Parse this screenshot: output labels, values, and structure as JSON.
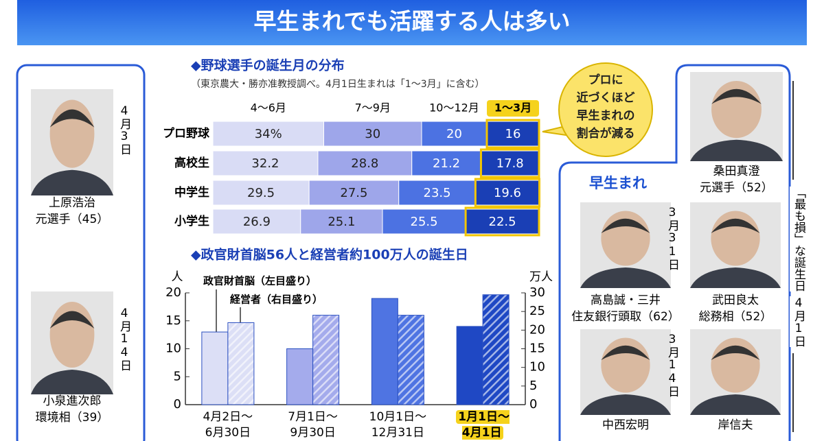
{
  "title": "早生まれでも活躍する人は多い",
  "chart_data": [
    {
      "type": "stacked_bar_h",
      "title": "◆野球選手の誕生月の分布",
      "subtitle": "（東京農大・勝亦准教授調べ。4月1日生まれは「1～3月」に含む）",
      "categories": [
        "プロ野球",
        "高校生",
        "中学生",
        "小学生"
      ],
      "series": [
        {
          "name": "4～6月",
          "color": "#d9dcf5",
          "values": [
            34,
            32.2,
            29.5,
            26.9
          ],
          "value_labels": [
            "34%",
            "32.2",
            "29.5",
            "26.9"
          ]
        },
        {
          "name": "7～9月",
          "color": "#9ea6ea",
          "values": [
            30,
            28.8,
            27.5,
            25.1
          ]
        },
        {
          "name": "10～12月",
          "color": "#4c72e2",
          "values": [
            20,
            21.2,
            23.5,
            25.5
          ]
        },
        {
          "name": "1～3月",
          "color": "#1a3fb5",
          "values": [
            16,
            17.8,
            19.6,
            22.5
          ]
        }
      ],
      "xlim": [
        0,
        100
      ],
      "annotation": "プロに\n近づくほど\n早生まれの\n割合が減る"
    },
    {
      "type": "bar",
      "title": "◆政官財首脳56人と経営者約100万人の誕生日",
      "ylabel": "人",
      "y2label": "万人",
      "categories": [
        "4月2日～\n6月30日",
        "7月1日～\n9月30日",
        "10月1日～\n12月31日",
        "1月1日～\n4月1日"
      ],
      "colors": [
        "#dcdff6",
        "#a4abec",
        "#4f74e2",
        "#1f48c4"
      ],
      "series": [
        {
          "name": "政官財首脳（左目盛り）",
          "pattern": "solid",
          "values": [
            13,
            10,
            19,
            14
          ]
        },
        {
          "name": "経営者（右目盛り）",
          "pattern": "hatch",
          "axis": "y2",
          "values": [
            22,
            24,
            24,
            29.5
          ]
        }
      ],
      "ylim": [
        0,
        20
      ],
      "yticks": [
        0,
        5,
        10,
        15,
        20
      ],
      "y2lim": [
        0,
        30
      ],
      "y2ticks": [
        0,
        5,
        10,
        15,
        20,
        25,
        30
      ]
    }
  ],
  "left_people": [
    {
      "name": "上原浩治",
      "role": "元選手（45）",
      "birthday": "4月3日"
    },
    {
      "name": "小泉進次郎",
      "role": "環境相（39）",
      "birthday": "4月14日"
    }
  ],
  "worst": {
    "label": "「最も損」な誕生日",
    "date": "4月1日",
    "person": {
      "name": "桑田真澄",
      "role": "元選手（52）"
    }
  },
  "early_born": {
    "label": "早生まれ",
    "rows": [
      {
        "birthday": "3月31日",
        "people": [
          {
            "name": "高島誠・三井",
            "role": "住友銀行頭取（62）"
          },
          {
            "name": "武田良太",
            "role": "総務相（52）"
          }
        ]
      },
      {
        "birthday": "3月14日",
        "people": [
          {
            "name": "中西宏明"
          },
          {
            "name": "岸信夫"
          }
        ]
      }
    ]
  }
}
